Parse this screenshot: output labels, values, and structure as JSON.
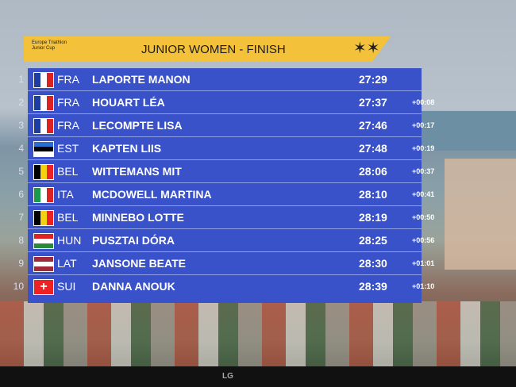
{
  "header": {
    "logo": "Europe Triathlon Junior Cup",
    "title": "JUNIOR WOMEN - FINISH"
  },
  "table": {
    "rows": [
      [
        "1",
        "FRA",
        "LAPORTE MANON",
        "27:29",
        null
      ],
      [
        "2",
        "FRA",
        "HOUART LÉA",
        "27:37",
        "+00:08"
      ],
      [
        "3",
        "FRA",
        "LECOMPTE LISA",
        "27:46",
        "+00:17"
      ],
      [
        "4",
        "EST",
        "KAPTEN LIIS",
        "27:48",
        "+00:19"
      ],
      [
        "5",
        "BEL",
        "WITTEMANS MIT",
        "28:06",
        "+00:37"
      ],
      [
        "6",
        "ITA",
        "MCDOWELL MARTINA",
        "28:10",
        "+00:41"
      ],
      [
        "7",
        "BEL",
        "MINNEBO LOTTE",
        "28:19",
        "+00:50"
      ],
      [
        "8",
        "HUN",
        "PUSZTAI DÓRA",
        "28:25",
        "+00:56"
      ],
      [
        "9",
        "LAT",
        "JANSONE BEATE",
        "28:30",
        "+01:01"
      ],
      [
        "10",
        "SUI",
        "DANNA ANOUK",
        "28:39",
        "+01:10"
      ]
    ]
  },
  "tv": {
    "brand": "LG"
  }
}
